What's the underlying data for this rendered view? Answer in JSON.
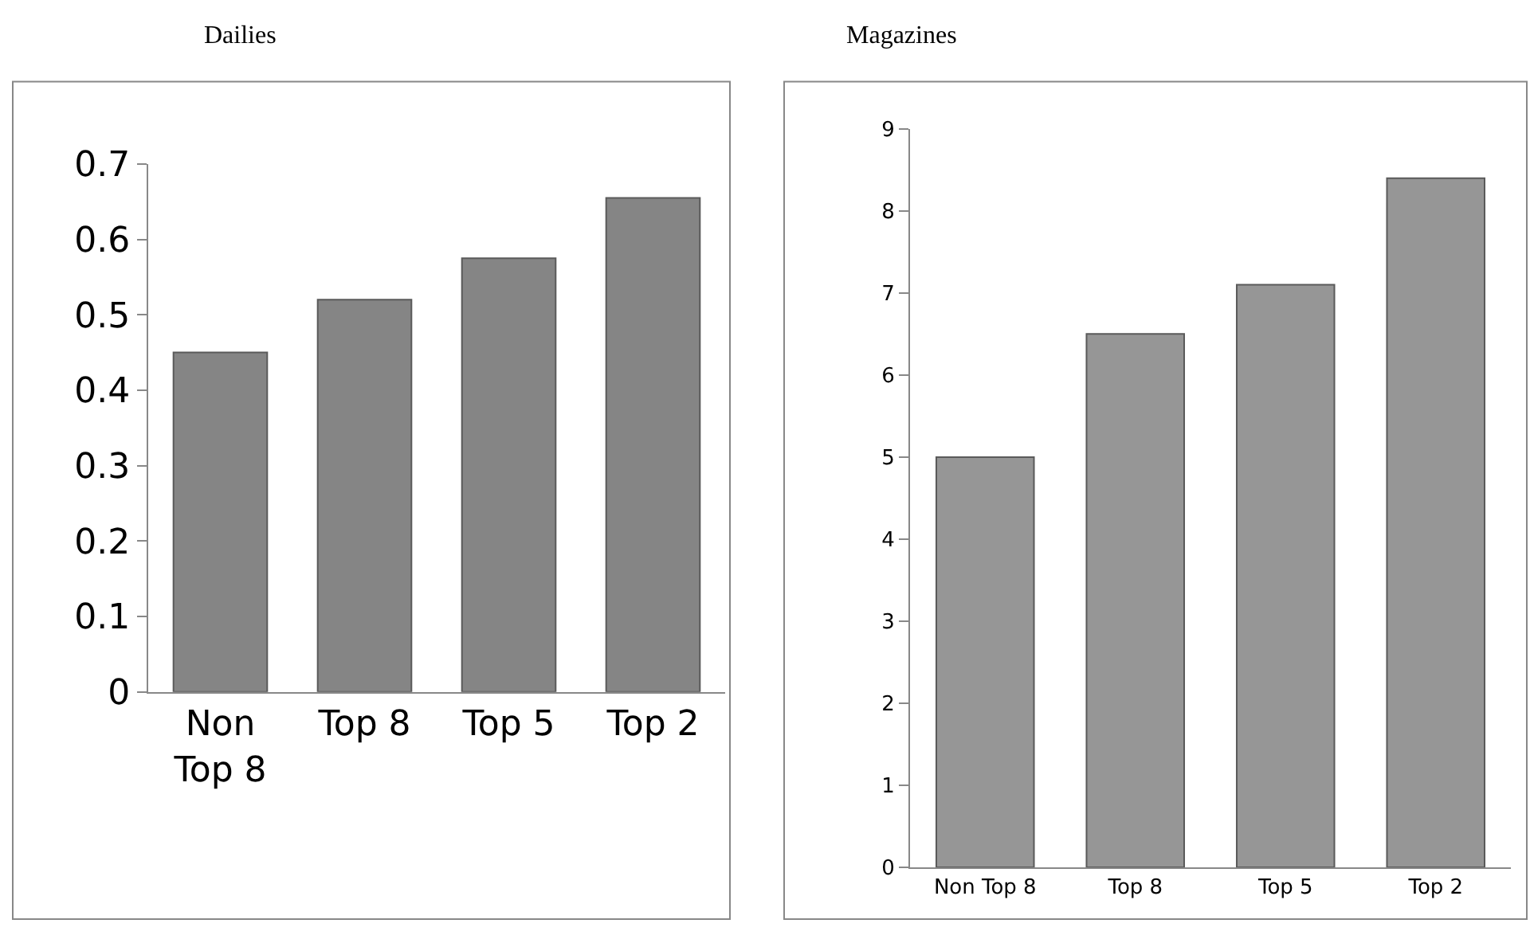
{
  "chart_data": [
    {
      "type": "bar",
      "title": "Dailies",
      "categories": [
        "Non Top 8",
        "Top 8",
        "Top 5",
        "Top 2"
      ],
      "values": [
        0.45,
        0.52,
        0.575,
        0.655
      ],
      "color": "#858585",
      "ylim": [
        0,
        0.7
      ],
      "yticks": [
        0,
        0.1,
        0.2,
        0.3,
        0.4,
        0.5,
        0.6,
        0.7
      ]
    },
    {
      "type": "bar",
      "title": "Magazines",
      "categories": [
        "Non Top 8",
        "Top 8",
        "Top 5",
        "Top 2"
      ],
      "values": [
        5.0,
        6.5,
        7.1,
        8.4
      ],
      "color": "#969696",
      "ylim": [
        0,
        9
      ],
      "yticks": [
        0,
        1,
        2,
        3,
        4,
        5,
        6,
        7,
        8,
        9
      ]
    }
  ]
}
